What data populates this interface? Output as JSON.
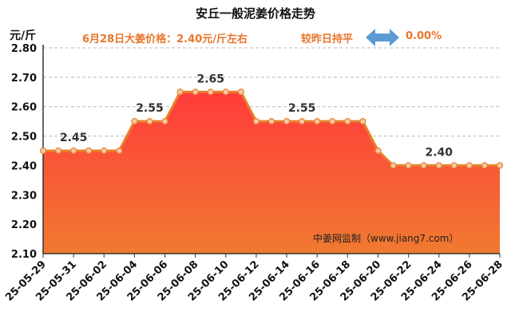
{
  "header": {
    "title": "安丘一般泥姜价格走势",
    "unit": "元/斤",
    "price_info": "6月28日大姜价格：2.40元/斤左右",
    "compare_text": "较昨日持平",
    "change_pct": "0.00%",
    "arrow_icon": "left-right-arrow-icon"
  },
  "watermark": "中姜网监制（www.jiang7.com）",
  "colors": {
    "line": "#e8812c",
    "fill_top": "#ff3b3b",
    "fill_bottom": "#f07a30",
    "accent_text": "#e8752a",
    "arrow": "#5b9bd5"
  },
  "chart_data": {
    "type": "area",
    "title": "安丘一般泥姜价格走势",
    "ylabel": "元/斤",
    "xlabel": "",
    "ylim": [
      2.1,
      2.8
    ],
    "yticks": [
      "2.10",
      "2.20",
      "2.30",
      "2.40",
      "2.50",
      "2.60",
      "2.70",
      "2.80"
    ],
    "grid": true,
    "x": [
      "25-05-29",
      "25-05-30",
      "25-05-31",
      "25-06-01",
      "25-06-02",
      "25-06-03",
      "25-06-04",
      "25-06-05",
      "25-06-06",
      "25-06-07",
      "25-06-08",
      "25-06-09",
      "25-06-10",
      "25-06-11",
      "25-06-12",
      "25-06-13",
      "25-06-14",
      "25-06-15",
      "25-06-16",
      "25-06-17",
      "25-06-18",
      "25-06-19",
      "25-06-20",
      "25-06-21",
      "25-06-22",
      "25-06-23",
      "25-06-24",
      "25-06-25",
      "25-06-26",
      "25-06-27",
      "25-06-28"
    ],
    "xticks": [
      "25-05-29",
      "25-05-31",
      "25-06-02",
      "25-06-04",
      "25-06-06",
      "25-06-08",
      "25-06-10",
      "25-06-12",
      "25-06-14",
      "25-06-16",
      "25-06-18",
      "25-06-20",
      "25-06-22",
      "25-06-24",
      "25-06-26",
      "25-06-28"
    ],
    "values": [
      2.45,
      2.45,
      2.45,
      2.45,
      2.45,
      2.45,
      2.55,
      2.55,
      2.55,
      2.65,
      2.65,
      2.65,
      2.65,
      2.65,
      2.55,
      2.55,
      2.55,
      2.55,
      2.55,
      2.55,
      2.55,
      2.55,
      2.45,
      2.4,
      2.4,
      2.4,
      2.4,
      2.4,
      2.4,
      2.4,
      2.4
    ],
    "data_labels": [
      {
        "x": "25-05-31",
        "text": "2.45",
        "value": 2.45
      },
      {
        "x": "25-06-05",
        "text": "2.55",
        "value": 2.55
      },
      {
        "x": "25-06-09",
        "text": "2.65",
        "value": 2.65
      },
      {
        "x": "25-06-15",
        "text": "2.55",
        "value": 2.55
      },
      {
        "x": "25-06-24",
        "text": "2.40",
        "value": 2.4
      }
    ]
  }
}
